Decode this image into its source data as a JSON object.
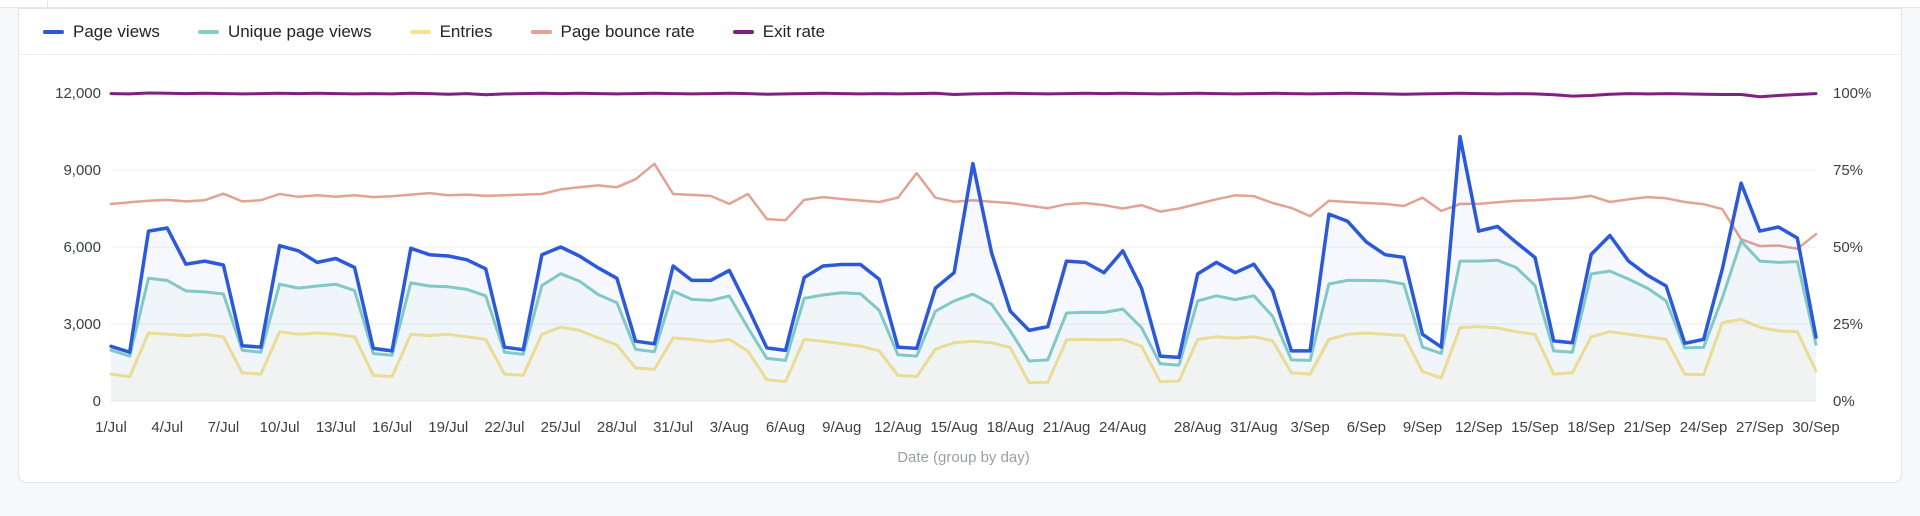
{
  "page": {
    "background": "#f7f8f9"
  },
  "card": {
    "background": "#ffffff",
    "border": "#e2e4e7"
  },
  "legend": {
    "position": "top-left",
    "items": [
      {
        "label": "Page views",
        "color": "#2b59d8"
      },
      {
        "label": "Unique page views",
        "color": "#85cec7"
      },
      {
        "label": "Entries",
        "color": "#f8e48f"
      },
      {
        "label": "Page bounce rate",
        "color": "#e2a294"
      },
      {
        "label": "Exit rate",
        "color": "#7f217f"
      }
    ]
  },
  "chart_data": {
    "type": "line",
    "title": "",
    "xlabel": "Date (group by day)",
    "num_days": 92,
    "x_range": [
      "1/Jul",
      "30/Sep"
    ],
    "grid": "horizontal gridlines only, color #ededed",
    "legend_position": "top-left",
    "left_axis": {
      "label": "",
      "ticks": [
        "0",
        "3,000",
        "6,000",
        "9,000",
        "12,000"
      ],
      "values": [
        0,
        3000,
        6000,
        9000,
        12000
      ],
      "max": 12000
    },
    "right_axis": {
      "label": "",
      "ticks": [
        "0%",
        "25%",
        "50%",
        "75%",
        "100%"
      ],
      "values": [
        0,
        25,
        50,
        75,
        100
      ],
      "max": 100
    },
    "x_ticks": [
      {
        "day": 0,
        "label": "1/Jul"
      },
      {
        "day": 3,
        "label": "4/Jul"
      },
      {
        "day": 6,
        "label": "7/Jul"
      },
      {
        "day": 9,
        "label": "10/Jul"
      },
      {
        "day": 12,
        "label": "13/Jul"
      },
      {
        "day": 15,
        "label": "16/Jul"
      },
      {
        "day": 18,
        "label": "19/Jul"
      },
      {
        "day": 21,
        "label": "22/Jul"
      },
      {
        "day": 24,
        "label": "25/Jul"
      },
      {
        "day": 27,
        "label": "28/Jul"
      },
      {
        "day": 30,
        "label": "31/Jul"
      },
      {
        "day": 33,
        "label": "3/Aug"
      },
      {
        "day": 36,
        "label": "6/Aug"
      },
      {
        "day": 39,
        "label": "9/Aug"
      },
      {
        "day": 42,
        "label": "12/Aug"
      },
      {
        "day": 45,
        "label": "15/Aug"
      },
      {
        "day": 48,
        "label": "18/Aug"
      },
      {
        "day": 51,
        "label": "21/Aug"
      },
      {
        "day": 54,
        "label": "24/Aug"
      },
      {
        "day": 58,
        "label": "28/Aug"
      },
      {
        "day": 61,
        "label": "31/Aug"
      },
      {
        "day": 64,
        "label": "3/Sep"
      },
      {
        "day": 67,
        "label": "6/Sep"
      },
      {
        "day": 70,
        "label": "9/Sep"
      },
      {
        "day": 73,
        "label": "12/Sep"
      },
      {
        "day": 76,
        "label": "15/Sep"
      },
      {
        "day": 79,
        "label": "18/Sep"
      },
      {
        "day": 82,
        "label": "21/Sep"
      },
      {
        "day": 85,
        "label": "24/Sep"
      },
      {
        "day": 88,
        "label": "27/Sep"
      },
      {
        "day": 91,
        "label": "30/Sep"
      }
    ],
    "series": [
      {
        "name": "Page views",
        "color": "#2b59d8",
        "axis": "left",
        "width": 3.5,
        "area_fill": "rgba(43,89,216,0.04)",
        "values": [
          2130,
          1900,
          6620,
          6740,
          5330,
          5450,
          5300,
          2150,
          2100,
          6050,
          5850,
          5400,
          5550,
          5200,
          2050,
          1950,
          5950,
          5700,
          5650,
          5500,
          5150,
          2100,
          2000,
          5700,
          6000,
          5650,
          5190,
          4780,
          2330,
          2230,
          5260,
          4700,
          4700,
          5090,
          3630,
          2070,
          1970,
          4810,
          5260,
          5320,
          5320,
          4740,
          2100,
          2050,
          4400,
          5000,
          9250,
          5770,
          3500,
          2750,
          2900,
          5450,
          5400,
          5000,
          5850,
          4400,
          1750,
          1700,
          4950,
          5400,
          5000,
          5330,
          4300,
          1950,
          1950,
          7280,
          7000,
          6200,
          5700,
          5600,
          2600,
          2100,
          10300,
          6620,
          6800,
          6180,
          5590,
          2340,
          2270,
          5710,
          6450,
          5450,
          4900,
          4480,
          2250,
          2400,
          5140,
          8490,
          6620,
          6780,
          6350,
          2490
        ]
      },
      {
        "name": "Unique page views",
        "color": "#85cec7",
        "axis": "left",
        "width": 3,
        "area_fill": "rgba(133,206,199,0.06)",
        "values": [
          1980,
          1750,
          4780,
          4700,
          4290,
          4250,
          4170,
          1980,
          1900,
          4550,
          4400,
          4480,
          4550,
          4300,
          1850,
          1780,
          4600,
          4480,
          4450,
          4350,
          4100,
          1900,
          1820,
          4500,
          4960,
          4670,
          4150,
          3830,
          2010,
          1920,
          4280,
          3960,
          3920,
          4090,
          2850,
          1660,
          1580,
          4000,
          4130,
          4220,
          4180,
          3530,
          1800,
          1750,
          3500,
          3900,
          4160,
          3770,
          2730,
          1560,
          1600,
          3430,
          3460,
          3450,
          3580,
          2860,
          1450,
          1400,
          3900,
          4100,
          3950,
          4100,
          3300,
          1600,
          1580,
          4560,
          4700,
          4700,
          4680,
          4560,
          2100,
          1850,
          5450,
          5450,
          5480,
          5200,
          4500,
          1950,
          1900,
          4950,
          5060,
          4750,
          4400,
          3900,
          2070,
          2090,
          4020,
          6230,
          5450,
          5400,
          5430,
          2210
        ]
      },
      {
        "name": "Entries",
        "color": "#f8e48f",
        "axis": "left",
        "width": 3,
        "area_fill": "rgba(248,228,143,0.07)",
        "values": [
          1050,
          950,
          2650,
          2600,
          2550,
          2600,
          2500,
          1100,
          1050,
          2700,
          2600,
          2650,
          2600,
          2500,
          1000,
          950,
          2600,
          2550,
          2600,
          2500,
          2400,
          1050,
          1000,
          2600,
          2880,
          2750,
          2460,
          2180,
          1290,
          1230,
          2460,
          2400,
          2310,
          2400,
          1940,
          830,
          760,
          2400,
          2330,
          2230,
          2140,
          1950,
          1000,
          950,
          2020,
          2270,
          2330,
          2270,
          2080,
          710,
          730,
          2380,
          2400,
          2380,
          2400,
          2140,
          750,
          780,
          2400,
          2500,
          2450,
          2500,
          2350,
          1100,
          1050,
          2400,
          2600,
          2650,
          2600,
          2550,
          1150,
          900,
          2860,
          2900,
          2850,
          2700,
          2600,
          1050,
          1100,
          2500,
          2700,
          2600,
          2500,
          2400,
          1050,
          1020,
          3060,
          3180,
          2870,
          2730,
          2700,
          1170
        ]
      },
      {
        "name": "Page bounce rate",
        "color": "#e2a294",
        "axis": "right",
        "width": 2.5,
        "area_fill": null,
        "values": [
          64.0,
          64.5,
          65.0,
          65.3,
          64.8,
          65.2,
          67.3,
          64.8,
          65.2,
          67.2,
          66.3,
          66.8,
          66.3,
          66.8,
          66.2,
          66.5,
          67.0,
          67.5,
          66.8,
          67.0,
          66.6,
          66.8,
          67.0,
          67.2,
          68.7,
          69.4,
          70.0,
          69.4,
          72.0,
          77.0,
          67.2,
          66.9,
          66.6,
          64.0,
          67.2,
          59.1,
          58.7,
          65.3,
          66.2,
          65.6,
          65.1,
          64.6,
          66.0,
          74.0,
          66.0,
          64.7,
          65.2,
          64.7,
          64.3,
          63.4,
          62.6,
          63.9,
          64.3,
          63.6,
          62.5,
          63.6,
          61.5,
          62.5,
          64.0,
          65.5,
          66.8,
          66.5,
          64.3,
          62.7,
          60.0,
          65.0,
          64.6,
          64.3,
          64.0,
          63.3,
          66.0,
          61.7,
          64.0,
          64.0,
          64.5,
          65.0,
          65.2,
          65.6,
          65.8,
          66.6,
          64.6,
          65.5,
          66.2,
          65.8,
          64.6,
          63.9,
          62.3,
          52.5,
          50.3,
          50.5,
          49.4,
          54.2
        ]
      },
      {
        "name": "Exit rate",
        "color": "#7f217f",
        "axis": "right",
        "width": 3,
        "area_fill": null,
        "values": [
          99.8,
          99.7,
          100,
          99.9,
          99.8,
          99.9,
          99.8,
          99.7,
          99.8,
          99.9,
          99.8,
          99.9,
          99.8,
          99.7,
          99.8,
          99.7,
          99.9,
          99.8,
          99.6,
          99.8,
          99.4,
          99.7,
          99.8,
          99.9,
          99.8,
          99.9,
          99.8,
          99.7,
          99.8,
          99.9,
          99.8,
          99.7,
          99.8,
          99.9,
          99.8,
          99.6,
          99.7,
          99.8,
          99.9,
          99.8,
          99.7,
          99.8,
          99.7,
          99.8,
          99.9,
          99.5,
          99.7,
          99.8,
          99.9,
          99.8,
          99.7,
          99.8,
          99.9,
          99.8,
          99.9,
          99.8,
          99.7,
          99.8,
          99.9,
          99.8,
          99.7,
          99.8,
          99.9,
          99.8,
          99.7,
          99.8,
          99.9,
          99.8,
          99.7,
          99.6,
          99.7,
          99.8,
          99.9,
          99.8,
          99.7,
          99.8,
          99.7,
          99.4,
          99.0,
          99.2,
          99.6,
          99.8,
          99.7,
          99.8,
          99.7,
          99.6,
          99.5,
          99.5,
          98.8,
          99.2,
          99.5,
          99.8
        ]
      }
    ]
  }
}
